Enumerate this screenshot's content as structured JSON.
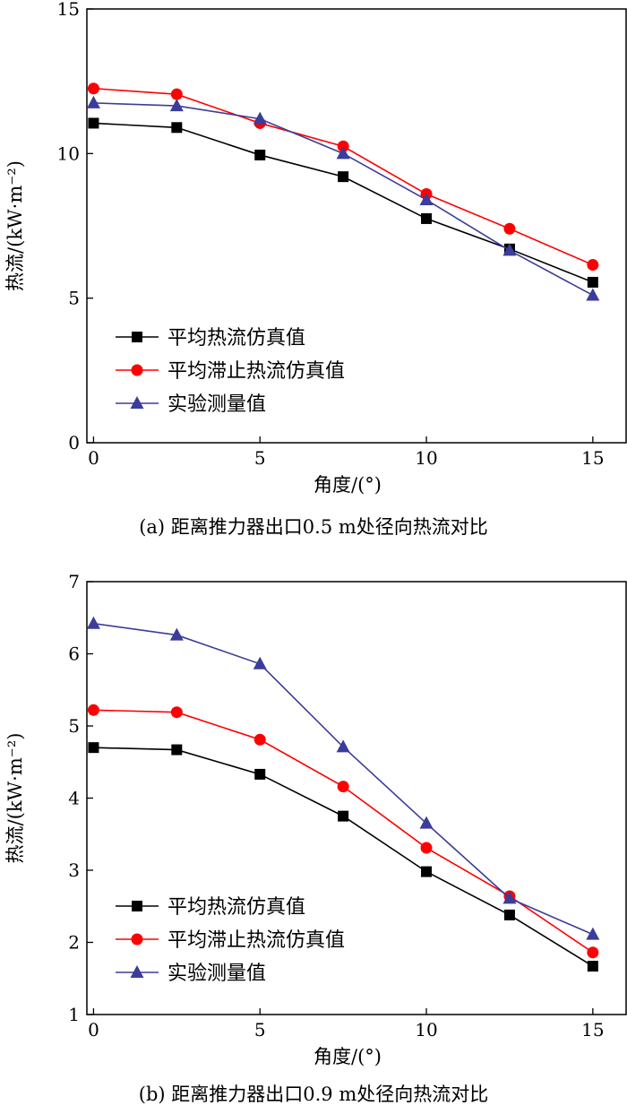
{
  "chart_data": [
    {
      "type": "line",
      "title": "",
      "caption": "(a) 距离推力器出口0.5 m处径向热流对比",
      "xlabel": "角度/(°)",
      "ylabel": "热流/(kW·m⁻²)",
      "xlim": [
        -0.2,
        16
      ],
      "ylim": [
        0,
        15
      ],
      "xticks": [
        0,
        5,
        10,
        15
      ],
      "yticks": [
        0,
        5,
        10,
        15
      ],
      "x": [
        0,
        2.5,
        5,
        7.5,
        10,
        12.5,
        15
      ],
      "legend_position": "lower-left",
      "series": [
        {
          "name": "平均热流仿真值",
          "color": "#000000",
          "marker": "square",
          "values": [
            11.05,
            10.9,
            9.95,
            9.2,
            7.75,
            6.7,
            5.55
          ]
        },
        {
          "name": "平均滞止热流仿真值",
          "color": "#ff0000",
          "marker": "circle",
          "values": [
            12.25,
            12.05,
            11.05,
            10.25,
            8.6,
            7.4,
            6.15
          ]
        },
        {
          "name": "实验测量值",
          "color": "#3c3c9a",
          "marker": "triangle",
          "values": [
            11.75,
            11.65,
            11.2,
            10.0,
            8.4,
            6.65,
            5.1
          ]
        }
      ]
    },
    {
      "type": "line",
      "title": "",
      "caption": "(b) 距离推力器出口0.9 m处径向热流对比",
      "xlabel": "角度/(°)",
      "ylabel": "热流/(kW·m⁻²)",
      "xlim": [
        -0.2,
        16
      ],
      "ylim": [
        1,
        7
      ],
      "xticks": [
        0,
        5,
        10,
        15
      ],
      "yticks": [
        1,
        2,
        3,
        4,
        5,
        6,
        7
      ],
      "x": [
        0,
        2.5,
        5,
        7.5,
        10,
        12.5,
        15
      ],
      "legend_position": "lower-left",
      "series": [
        {
          "name": "平均热流仿真值",
          "color": "#000000",
          "marker": "square",
          "values": [
            4.7,
            4.67,
            4.33,
            3.75,
            2.98,
            2.38,
            1.67
          ]
        },
        {
          "name": "平均滞止热流仿真值",
          "color": "#ff0000",
          "marker": "circle",
          "values": [
            5.22,
            5.19,
            4.81,
            4.16,
            3.31,
            2.64,
            1.86
          ]
        },
        {
          "name": "实验测量值",
          "color": "#3c3c9a",
          "marker": "triangle",
          "values": [
            6.42,
            6.26,
            5.86,
            4.71,
            3.65,
            2.61,
            2.11
          ]
        }
      ]
    }
  ]
}
